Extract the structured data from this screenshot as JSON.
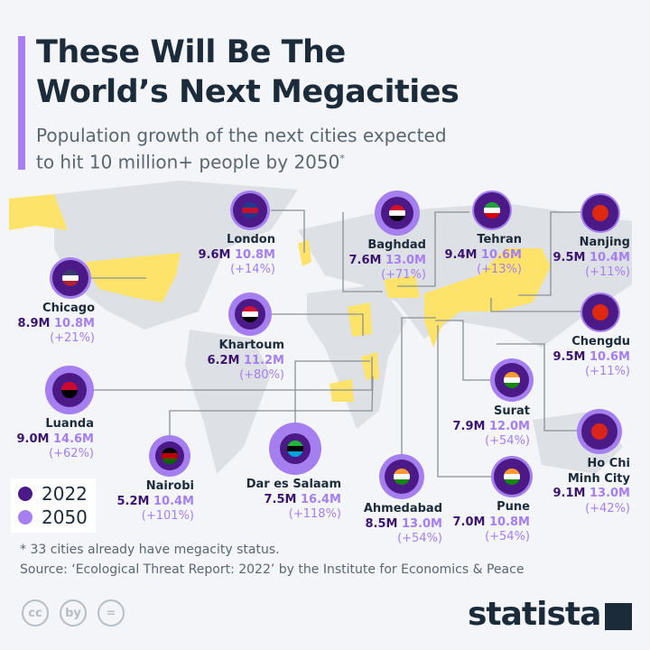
{
  "header": {
    "title_line1": "These Will Be The",
    "title_line2": "World’s Next Megacities",
    "subtitle_line1": "Population growth of the next cities expected",
    "subtitle_line2": "to hit 10 million+ people by 2050",
    "subtitle_mark": "*"
  },
  "colors": {
    "y2022": "#4b1a86",
    "y2050": "#a57ff0",
    "highlight_country": "#fde36a",
    "land": "#dde0e4",
    "accent_bar": "#a57ff0"
  },
  "cities": [
    {
      "name": "London",
      "p2022": "9.6M",
      "p2050": "10.8M",
      "growth": "(+14%)",
      "flag": "uk-flag-icon"
    },
    {
      "name": "Chicago",
      "p2022": "8.9M",
      "p2050": "10.8M",
      "growth": "(+21%)",
      "flag": "us-flag-icon"
    },
    {
      "name": "Khartoum",
      "p2022": "6.2M",
      "p2050": "11.2M",
      "growth": "(+80%)",
      "flag": "sudan-flag-icon"
    },
    {
      "name": "Luanda",
      "p2022": "9.0M",
      "p2050": "14.6M",
      "growth": "(+62%)",
      "flag": "angola-flag-icon"
    },
    {
      "name": "Nairobi",
      "p2022": "5.2M",
      "p2050": "10.4M",
      "growth": "(+101%)",
      "flag": "kenya-flag-icon"
    },
    {
      "name": "Dar es Salaam",
      "p2022": "7.5M",
      "p2050": "16.4M",
      "growth": "(+118%)",
      "flag": "tanzania-flag-icon"
    },
    {
      "name": "Baghdad",
      "p2022": "7.6M",
      "p2050": "13.0M",
      "growth": "(+71%)",
      "flag": "iraq-flag-icon"
    },
    {
      "name": "Tehran",
      "p2022": "9.4M",
      "p2050": "10.6M",
      "growth": "(+13%)",
      "flag": "iran-flag-icon"
    },
    {
      "name": "Nanjing",
      "p2022": "9.5M",
      "p2050": "10.4M",
      "growth": "(+11%)",
      "flag": "china-flag-icon"
    },
    {
      "name": "Chengdu",
      "p2022": "9.5M",
      "p2050": "10.6M",
      "growth": "(+11%)",
      "flag": "china-flag-icon"
    },
    {
      "name": "Surat",
      "p2022": "7.9M",
      "p2050": "12.0M",
      "growth": "(+54%)",
      "flag": "india-flag-icon"
    },
    {
      "name": "Ho Chi Minh City",
      "name_line1": "Ho Chi",
      "name_line2": "Minh City",
      "p2022": "9.1M",
      "p2050": "13.0M",
      "growth": "(+42%)",
      "flag": "vietnam-flag-icon"
    },
    {
      "name": "Ahmedabad",
      "p2022": "8.5M",
      "p2050": "13.0M",
      "growth": "(+54%)",
      "flag": "india-flag-icon"
    },
    {
      "name": "Pune",
      "p2022": "7.0M",
      "p2050": "10.8M",
      "growth": "(+54%)",
      "flag": "india-flag-icon"
    }
  ],
  "legend": {
    "y2022": "2022",
    "y2050": "2050"
  },
  "footer": {
    "note": "* 33 cities already have megacity status.",
    "source": "Source: ‘Ecological Threat Report: 2022’ by the Institute for Economics & Peace",
    "license_icons": [
      "cc",
      "by",
      "="
    ],
    "brand": "statista"
  }
}
